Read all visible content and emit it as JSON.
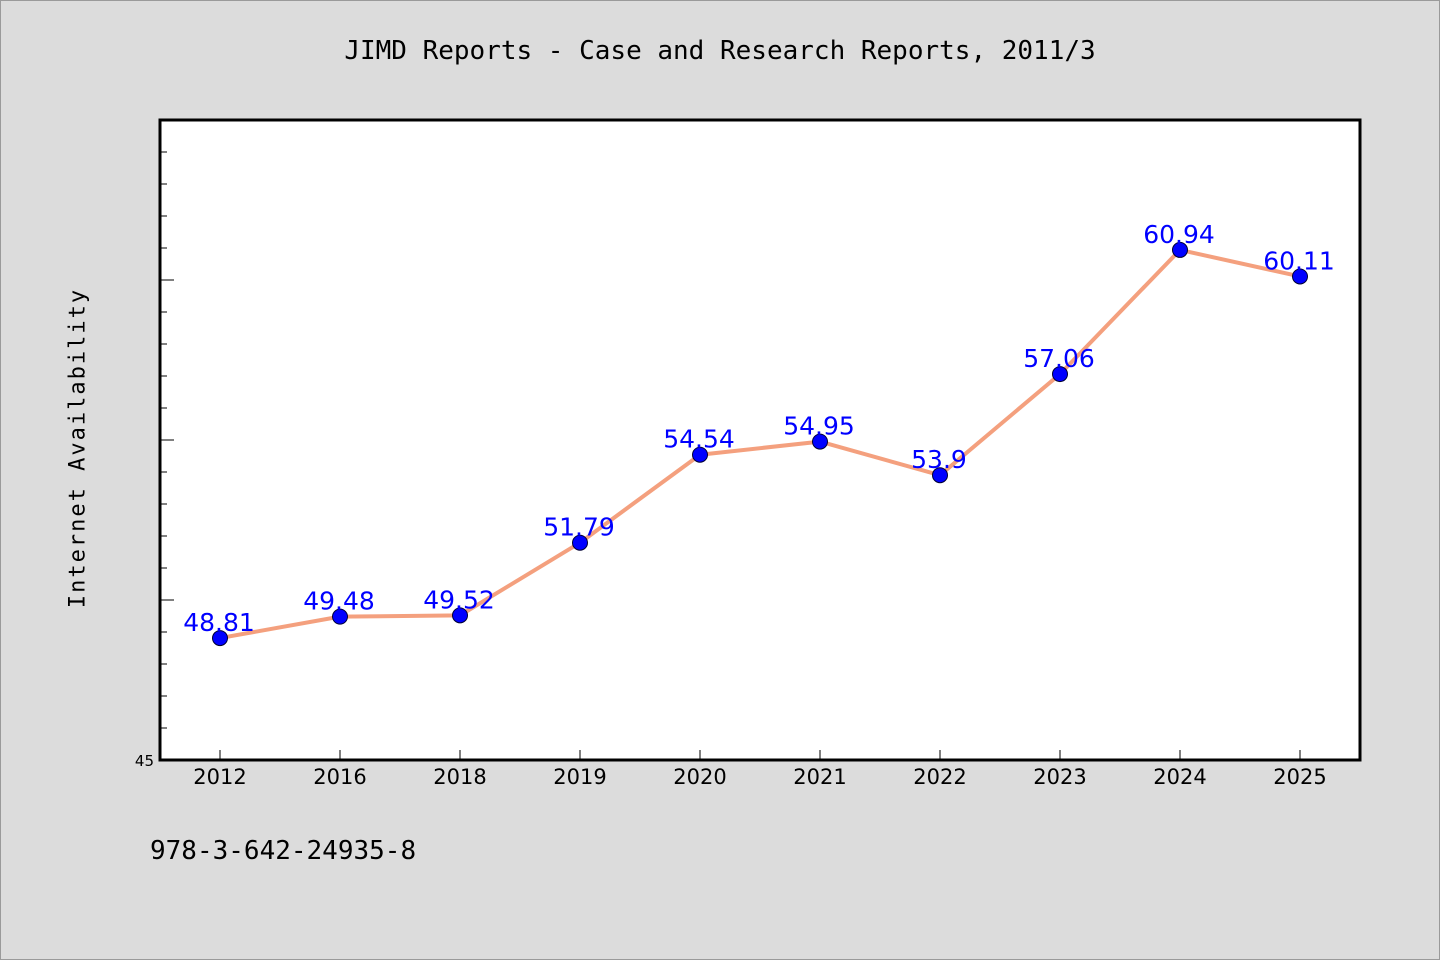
{
  "header": {
    "title": "JIMD Reports - Case and Research Reports, 2011/3"
  },
  "footer": {
    "isbn": "978-3-642-24935-8"
  },
  "chart_data": {
    "type": "line",
    "title": "JIMD Reports - Case and Research Reports, 2011/3",
    "xlabel": "",
    "ylabel": "Internet Availability",
    "categories": [
      "2012",
      "2016",
      "2018",
      "2019",
      "2020",
      "2021",
      "2022",
      "2023",
      "2024",
      "2025"
    ],
    "series": [
      {
        "values": [
          48.81,
          49.48,
          49.52,
          51.79,
          54.54,
          54.95,
          53.9,
          57.06,
          60.94,
          60.11
        ],
        "labels": [
          "48.81",
          "49.48",
          "49.52",
          "51.79",
          "54.54",
          "54.95",
          "53.9",
          "57.06",
          "60.94",
          "60.11"
        ]
      }
    ],
    "ylim": [
      45,
      65
    ],
    "y_tick_labels": [
      "45"
    ],
    "grid": false,
    "colors": {
      "line": "#f4a07e",
      "marker": "#0000ff",
      "data_label": "#0000ff",
      "plot_background": "#ffffff",
      "page_background": "#dcdcdc"
    }
  }
}
